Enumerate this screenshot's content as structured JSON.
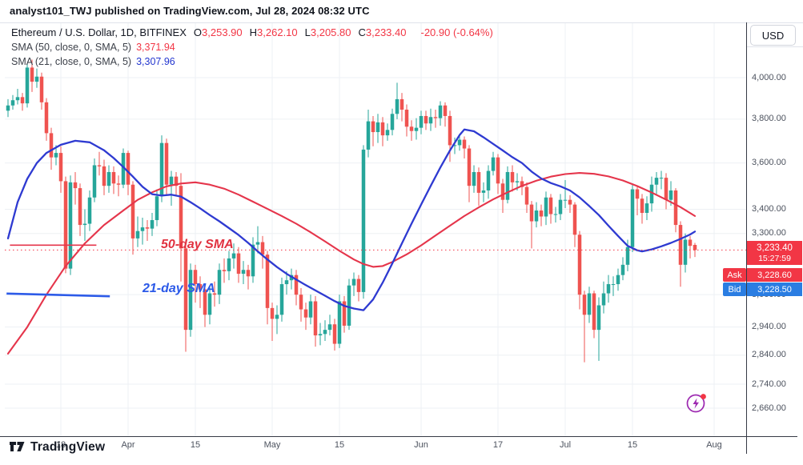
{
  "publish_line": "analyst101_TWJ published on TradingView.com, Jul 28, 2024 08:32 UTC",
  "symbol_bar": {
    "title": "Ethereum / U.S. Dollar, 1D, BITFINEX",
    "ohlc": [
      {
        "label": "O",
        "value": "3,253.90"
      },
      {
        "label": "H",
        "value": "3,262.10"
      },
      {
        "label": "L",
        "value": "3,205.80"
      },
      {
        "label": "C",
        "value": "3,233.40"
      }
    ],
    "change": "-20.90 (-0.64%)"
  },
  "indicators": [
    {
      "label": "SMA (50, close, 0, SMA, 5)",
      "value": "3,371.94",
      "color": "#f23645"
    },
    {
      "label": "SMA (21, close, 0, SMA, 5)",
      "value": "3,307.96",
      "color": "#2336cf"
    }
  ],
  "currency_button": "USD",
  "price_labels": {
    "last": {
      "value": "3,233.40",
      "countdown": "15:27:59"
    },
    "ask": {
      "tag": "Ask",
      "value": "3,228.60"
    },
    "bid": {
      "tag": "Bid",
      "value": "3,228.50"
    }
  },
  "annotations": [
    {
      "text": "50-day SMA",
      "color": "#e13240"
    },
    {
      "text": "21-day SMA",
      "color": "#2b59e8"
    }
  ],
  "footer": {
    "brand": "TradingView"
  },
  "icons": {
    "minds": "lightning-in-circle",
    "minds_color": "#9c27b0",
    "minds_dot_color": "#f23645"
  },
  "colors": {
    "up": "#26a69a",
    "down": "#ef5350",
    "sma50": "#e5354b",
    "sma21": "#2e3ad1",
    "grid": "#edf0f4",
    "axis_border": "#363a45",
    "last_price_line": "#f23645",
    "ask_bg": "#f23645",
    "bid_bg": "#2a7de2"
  },
  "chart_data": {
    "type": "candlestick",
    "symbol": "ETHUSD",
    "exchange": "BITFINEX",
    "interval": "1D",
    "scale": "log",
    "start_date": "2024-03-07",
    "end_date": "2024-07-28",
    "last_price": 3233.4,
    "y_ticks": [
      {
        "label": "4,000.00",
        "value": 4000
      },
      {
        "label": "3,800.00",
        "value": 3800
      },
      {
        "label": "3,600.00",
        "value": 3600
      },
      {
        "label": "3,400.00",
        "value": 3400
      },
      {
        "label": "3,300.00",
        "value": 3300
      },
      {
        "label": "3,060.00",
        "value": 3060
      },
      {
        "label": "2,940.00",
        "value": 2940
      },
      {
        "label": "2,840.00",
        "value": 2840
      },
      {
        "label": "2,740.00",
        "value": 2740
      },
      {
        "label": "2,660.00",
        "value": 2660
      }
    ],
    "x_ticks": [
      {
        "label": "18",
        "index": 11
      },
      {
        "label": "Apr",
        "index": 25
      },
      {
        "label": "15",
        "index": 39
      },
      {
        "label": "May",
        "index": 55
      },
      {
        "label": "15",
        "index": 69
      },
      {
        "label": "Jun",
        "index": 86
      },
      {
        "label": "17",
        "index": 102
      },
      {
        "label": "Jul",
        "index": 116
      },
      {
        "label": "15",
        "index": 130
      },
      {
        "label": "Aug",
        "index": 147
      }
    ],
    "candles": [
      [
        3840,
        3895,
        3810,
        3865
      ],
      [
        3865,
        3915,
        3845,
        3890
      ],
      [
        3890,
        3945,
        3870,
        3905
      ],
      [
        3905,
        3925,
        3840,
        3875
      ],
      [
        3875,
        4070,
        3855,
        4050
      ],
      [
        4050,
        4090,
        3930,
        3980
      ],
      [
        3980,
        4045,
        3950,
        4005
      ],
      [
        4005,
        4025,
        3845,
        3880
      ],
      [
        3880,
        3900,
        3700,
        3735
      ],
      [
        3735,
        3760,
        3570,
        3625
      ],
      [
        3625,
        3680,
        3590,
        3645
      ],
      [
        3645,
        3675,
        3470,
        3520
      ],
      [
        3520,
        3540,
        3142,
        3160
      ],
      [
        3160,
        3545,
        3135,
        3515
      ],
      [
        3515,
        3560,
        3420,
        3490
      ],
      [
        3490,
        3510,
        3290,
        3335
      ],
      [
        3335,
        3400,
        3270,
        3340
      ],
      [
        3340,
        3480,
        3310,
        3450
      ],
      [
        3450,
        3620,
        3430,
        3590
      ],
      [
        3590,
        3650,
        3545,
        3585
      ],
      [
        3585,
        3615,
        3460,
        3500
      ],
      [
        3500,
        3590,
        3470,
        3560
      ],
      [
        3560,
        3585,
        3465,
        3510
      ],
      [
        3510,
        3545,
        3455,
        3505
      ],
      [
        3505,
        3665,
        3490,
        3645
      ],
      [
        3645,
        3655,
        3460,
        3505
      ],
      [
        3505,
        3520,
        3215,
        3280
      ],
      [
        3280,
        3370,
        3245,
        3310
      ],
      [
        3310,
        3365,
        3255,
        3325
      ],
      [
        3325,
        3355,
        3270,
        3320
      ],
      [
        3320,
        3385,
        3290,
        3355
      ],
      [
        3355,
        3485,
        3330,
        3455
      ],
      [
        3455,
        3725,
        3430,
        3690
      ],
      [
        3690,
        3710,
        3460,
        3505
      ],
      [
        3505,
        3565,
        3415,
        3540
      ],
      [
        3540,
        3560,
        3455,
        3500
      ],
      [
        3500,
        3555,
        3110,
        3240
      ],
      [
        3240,
        3260,
        2852,
        2930
      ],
      [
        2930,
        3180,
        2905,
        3155
      ],
      [
        3155,
        3175,
        3030,
        3100
      ],
      [
        3100,
        3130,
        3010,
        3080
      ],
      [
        3080,
        3100,
        2940,
        2985
      ],
      [
        2985,
        3095,
        2950,
        3065
      ],
      [
        3065,
        3110,
        3015,
        3060
      ],
      [
        3060,
        3180,
        3025,
        3155
      ],
      [
        3155,
        3200,
        3105,
        3150
      ],
      [
        3150,
        3230,
        3115,
        3200
      ],
      [
        3200,
        3260,
        3160,
        3220
      ],
      [
        3220,
        3245,
        3105,
        3140
      ],
      [
        3140,
        3190,
        3100,
        3155
      ],
      [
        3155,
        3175,
        3080,
        3130
      ],
      [
        3130,
        3285,
        3105,
        3255
      ],
      [
        3255,
        3330,
        3220,
        3265
      ],
      [
        3265,
        3290,
        3160,
        3215
      ],
      [
        3215,
        3230,
        2950,
        3010
      ],
      [
        3010,
        3030,
        2890,
        2970
      ],
      [
        2970,
        3020,
        2915,
        2985
      ],
      [
        2985,
        3125,
        2960,
        3100
      ],
      [
        3100,
        3150,
        3060,
        3115
      ],
      [
        3115,
        3160,
        3080,
        3135
      ],
      [
        3135,
        3155,
        3020,
        3060
      ],
      [
        3060,
        3085,
        2960,
        3005
      ],
      [
        3005,
        3030,
        2930,
        2975
      ],
      [
        2975,
        3060,
        2950,
        3035
      ],
      [
        3035,
        3055,
        2870,
        2910
      ],
      [
        2910,
        2955,
        2875,
        2915
      ],
      [
        2915,
        2965,
        2890,
        2930
      ],
      [
        2930,
        2985,
        2910,
        2950
      ],
      [
        2950,
        2970,
        2856,
        2880
      ],
      [
        2880,
        3060,
        2865,
        3035
      ],
      [
        3035,
        3055,
        2920,
        2945
      ],
      [
        2945,
        3120,
        2930,
        3095
      ],
      [
        3095,
        3145,
        3055,
        3120
      ],
      [
        3120,
        3135,
        3035,
        3070
      ],
      [
        3070,
        3680,
        3045,
        3660
      ],
      [
        3660,
        3845,
        3625,
        3790
      ],
      [
        3790,
        3815,
        3675,
        3740
      ],
      [
        3740,
        3825,
        3690,
        3785
      ],
      [
        3785,
        3810,
        3675,
        3725
      ],
      [
        3725,
        3780,
        3700,
        3750
      ],
      [
        3750,
        3850,
        3725,
        3825
      ],
      [
        3825,
        3975,
        3800,
        3895
      ],
      [
        3895,
        3925,
        3790,
        3845
      ],
      [
        3845,
        3870,
        3720,
        3765
      ],
      [
        3765,
        3795,
        3700,
        3745
      ],
      [
        3745,
        3805,
        3705,
        3760
      ],
      [
        3760,
        3840,
        3730,
        3815
      ],
      [
        3815,
        3840,
        3750,
        3780
      ],
      [
        3780,
        3850,
        3745,
        3810
      ],
      [
        3810,
        3845,
        3760,
        3805
      ],
      [
        3805,
        3885,
        3770,
        3865
      ],
      [
        3865,
        3880,
        3765,
        3815
      ],
      [
        3815,
        3840,
        3605,
        3680
      ],
      [
        3680,
        3715,
        3640,
        3680
      ],
      [
        3680,
        3730,
        3655,
        3705
      ],
      [
        3705,
        3720,
        3620,
        3665
      ],
      [
        3665,
        3680,
        3430,
        3500
      ],
      [
        3500,
        3590,
        3470,
        3560
      ],
      [
        3560,
        3580,
        3415,
        3470
      ],
      [
        3470,
        3515,
        3430,
        3480
      ],
      [
        3480,
        3590,
        3445,
        3565
      ],
      [
        3565,
        3650,
        3545,
        3625
      ],
      [
        3625,
        3640,
        3465,
        3510
      ],
      [
        3510,
        3530,
        3385,
        3440
      ],
      [
        3440,
        3585,
        3425,
        3560
      ],
      [
        3560,
        3590,
        3475,
        3515
      ],
      [
        3515,
        3555,
        3480,
        3520
      ],
      [
        3520,
        3540,
        3460,
        3495
      ],
      [
        3495,
        3515,
        3385,
        3420
      ],
      [
        3420,
        3435,
        3240,
        3350
      ],
      [
        3350,
        3430,
        3325,
        3395
      ],
      [
        3395,
        3420,
        3330,
        3370
      ],
      [
        3370,
        3475,
        3335,
        3450
      ],
      [
        3450,
        3465,
        3340,
        3380
      ],
      [
        3380,
        3410,
        3345,
        3380
      ],
      [
        3380,
        3465,
        3355,
        3440
      ],
      [
        3440,
        3525,
        3405,
        3440
      ],
      [
        3440,
        3460,
        3385,
        3420
      ],
      [
        3420,
        3430,
        3245,
        3295
      ],
      [
        3295,
        3310,
        3005,
        3060
      ],
      [
        3060,
        3075,
        2815,
        2985
      ],
      [
        2985,
        3090,
        2955,
        3065
      ],
      [
        3065,
        3075,
        2900,
        2930
      ],
      [
        2930,
        3050,
        2820,
        3020
      ],
      [
        3020,
        3110,
        2990,
        3065
      ],
      [
        3065,
        3135,
        3030,
        3100
      ],
      [
        3100,
        3130,
        3055,
        3100
      ],
      [
        3100,
        3160,
        3075,
        3135
      ],
      [
        3135,
        3205,
        3115,
        3175
      ],
      [
        3175,
        3275,
        3150,
        3245
      ],
      [
        3245,
        3510,
        3225,
        3485
      ],
      [
        3485,
        3500,
        3375,
        3445
      ],
      [
        3445,
        3465,
        3340,
        3385
      ],
      [
        3385,
        3455,
        3355,
        3425
      ],
      [
        3425,
        3540,
        3390,
        3505
      ],
      [
        3505,
        3560,
        3465,
        3535
      ],
      [
        3535,
        3565,
        3485,
        3535
      ],
      [
        3535,
        3555,
        3400,
        3440
      ],
      [
        3440,
        3520,
        3415,
        3480
      ],
      [
        3480,
        3490,
        3305,
        3335
      ],
      [
        3335,
        3350,
        3090,
        3175
      ],
      [
        3175,
        3300,
        3145,
        3275
      ],
      [
        3275,
        3290,
        3200,
        3250
      ],
      [
        3253.9,
        3262.1,
        3205.8,
        3233.4
      ]
    ],
    "sma50_points": [
      [
        0,
        2845
      ],
      [
        4,
        2940
      ],
      [
        8,
        3060
      ],
      [
        12,
        3170
      ],
      [
        16,
        3260
      ],
      [
        20,
        3335
      ],
      [
        24,
        3395
      ],
      [
        27,
        3440
      ],
      [
        30,
        3472
      ],
      [
        33,
        3498
      ],
      [
        36,
        3510
      ],
      [
        39,
        3515
      ],
      [
        42,
        3505
      ],
      [
        45,
        3488
      ],
      [
        48,
        3462
      ],
      [
        51,
        3432
      ],
      [
        54,
        3402
      ],
      [
        57,
        3372
      ],
      [
        60,
        3340
      ],
      [
        63,
        3305
      ],
      [
        66,
        3268
      ],
      [
        69,
        3230
      ],
      [
        72,
        3196
      ],
      [
        74,
        3178
      ],
      [
        76,
        3167
      ],
      [
        78,
        3170
      ],
      [
        80,
        3186
      ],
      [
        83,
        3216
      ],
      [
        86,
        3252
      ],
      [
        89,
        3292
      ],
      [
        92,
        3332
      ],
      [
        95,
        3372
      ],
      [
        98,
        3408
      ],
      [
        101,
        3442
      ],
      [
        104,
        3472
      ],
      [
        107,
        3500
      ],
      [
        110,
        3522
      ],
      [
        113,
        3540
      ],
      [
        116,
        3551
      ],
      [
        119,
        3556
      ],
      [
        122,
        3552
      ],
      [
        125,
        3541
      ],
      [
        128,
        3523
      ],
      [
        131,
        3499
      ],
      [
        134,
        3471
      ],
      [
        137,
        3441
      ],
      [
        140,
        3409
      ],
      [
        143,
        3372
      ]
    ],
    "sma21_points": [
      [
        0,
        3280
      ],
      [
        2,
        3430
      ],
      [
        4,
        3530
      ],
      [
        6,
        3600
      ],
      [
        8,
        3645
      ],
      [
        11,
        3682
      ],
      [
        14,
        3700
      ],
      [
        17,
        3693
      ],
      [
        20,
        3657
      ],
      [
        22,
        3622
      ],
      [
        24,
        3582
      ],
      [
        26,
        3540
      ],
      [
        28,
        3496
      ],
      [
        30,
        3464
      ],
      [
        32,
        3458
      ],
      [
        34,
        3462
      ],
      [
        36,
        3454
      ],
      [
        38,
        3430
      ],
      [
        40,
        3404
      ],
      [
        42,
        3376
      ],
      [
        44,
        3350
      ],
      [
        46,
        3322
      ],
      [
        48,
        3294
      ],
      [
        50,
        3262
      ],
      [
        52,
        3228
      ],
      [
        54,
        3196
      ],
      [
        56,
        3166
      ],
      [
        58,
        3140
      ],
      [
        60,
        3118
      ],
      [
        62,
        3096
      ],
      [
        64,
        3076
      ],
      [
        66,
        3056
      ],
      [
        68,
        3036
      ],
      [
        70,
        3018
      ],
      [
        72,
        3008
      ],
      [
        74,
        3002
      ],
      [
        76,
        3042
      ],
      [
        78,
        3106
      ],
      [
        80,
        3180
      ],
      [
        82,
        3260
      ],
      [
        84,
        3340
      ],
      [
        86,
        3420
      ],
      [
        88,
        3500
      ],
      [
        90,
        3580
      ],
      [
        92,
        3656
      ],
      [
        94,
        3726
      ],
      [
        95,
        3752
      ],
      [
        97,
        3744
      ],
      [
        99,
        3716
      ],
      [
        101,
        3686
      ],
      [
        103,
        3656
      ],
      [
        105,
        3626
      ],
      [
        107,
        3600
      ],
      [
        109,
        3562
      ],
      [
        111,
        3532
      ],
      [
        113,
        3512
      ],
      [
        115,
        3498
      ],
      [
        117,
        3480
      ],
      [
        119,
        3450
      ],
      [
        121,
        3414
      ],
      [
        123,
        3376
      ],
      [
        125,
        3332
      ],
      [
        127,
        3290
      ],
      [
        129,
        3250
      ],
      [
        131,
        3232
      ],
      [
        132,
        3228
      ],
      [
        134,
        3236
      ],
      [
        136,
        3248
      ],
      [
        138,
        3262
      ],
      [
        140,
        3278
      ],
      [
        142,
        3296
      ],
      [
        143,
        3308
      ]
    ],
    "sma50_last": 3371.94,
    "sma21_last": 3307.96,
    "trendlines": [
      {
        "name": "50-day-sma-level",
        "color": "#e5354b",
        "width": 1.6,
        "i1": 0.4,
        "p1": 3253,
        "i2": 18.4,
        "p2": 3253
      },
      {
        "name": "21-day-sma-level",
        "color": "#2d5be8",
        "width": 2.6,
        "i1": -0.3,
        "p1": 3064,
        "i2": 21.2,
        "p2": 3054
      }
    ]
  }
}
